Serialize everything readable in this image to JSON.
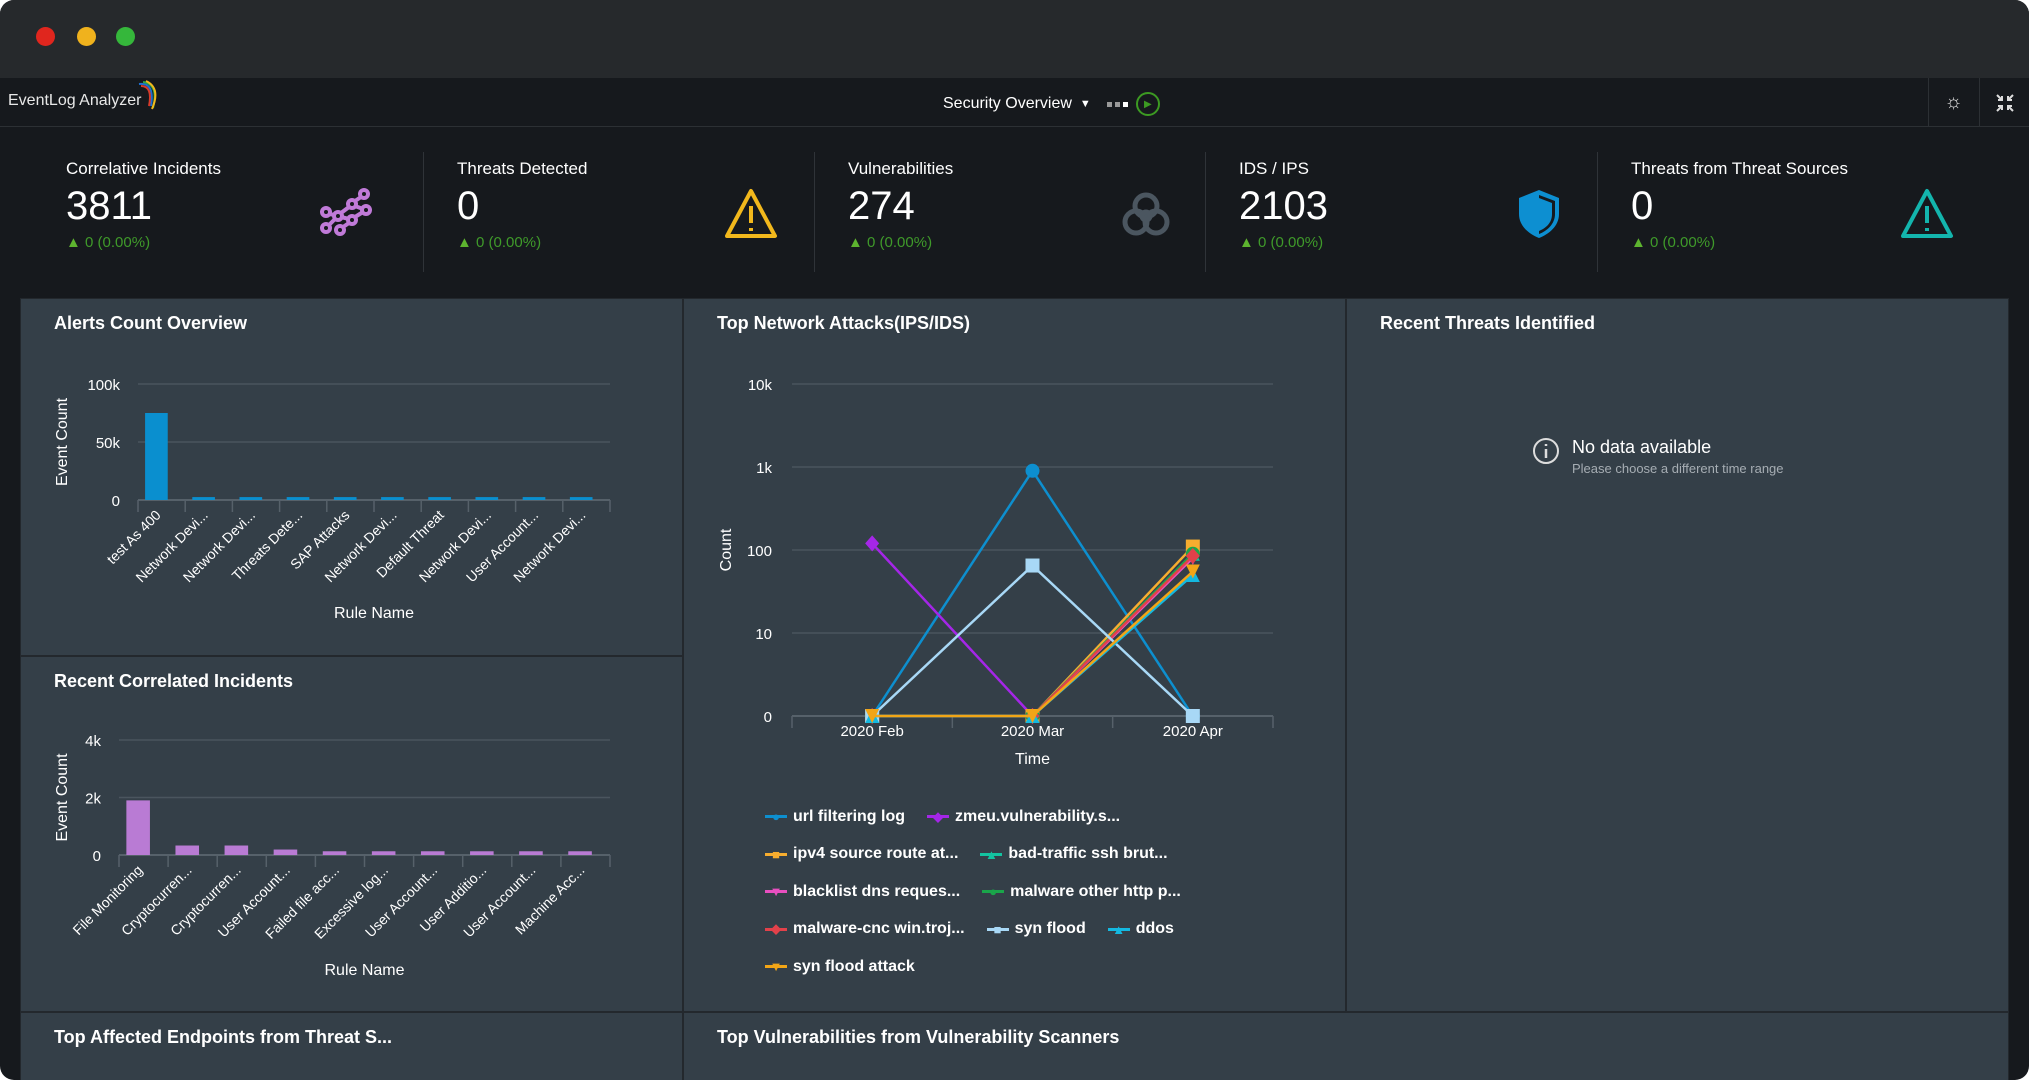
{
  "app": {
    "name": "EventLog Analyzer",
    "dashboard": "Security Overview"
  },
  "header": {
    "theme_icon": "theme-toggle-icon",
    "collapse_icon": "collapse-icon"
  },
  "kpis": [
    {
      "label": "Correlative Incidents",
      "value": "3811",
      "change": "0 (0.00%)",
      "icon": "correlation-icon",
      "color": "#c07ad8"
    },
    {
      "label": "Threats Detected",
      "value": "0",
      "change": "0 (0.00%)",
      "icon": "warning-icon",
      "color": "#f2b81c"
    },
    {
      "label": "Vulnerabilities",
      "value": "274",
      "change": "0 (0.00%)",
      "icon": "biohazard-icon",
      "color": "#4b5660"
    },
    {
      "label": "IDS / IPS",
      "value": "2103",
      "change": "0 (0.00%)",
      "icon": "shield-icon",
      "color": "#0d8fd1"
    },
    {
      "label": "Threats from Threat Sources",
      "value": "0",
      "change": "0 (0.00%)",
      "icon": "warning-outline-icon",
      "color": "#13b5ad"
    }
  ],
  "panels": {
    "alerts": "Alerts Count Overview",
    "network": "Top Network Attacks(IPS/IDS)",
    "recent_threats": "Recent Threats Identified",
    "correlated": "Recent Correlated Incidents",
    "endpoints": "Top Affected Endpoints from Threat S...",
    "vulns": "Top Vulnerabilities from Vulnerability Scanners"
  },
  "no_data": {
    "title": "No data available",
    "subtitle": "Please choose a different time range"
  },
  "chart_data": [
    {
      "type": "bar",
      "title": "Alerts Count Overview",
      "xlabel": "Rule Name",
      "ylabel": "Event Count",
      "color": "#0a8fcf",
      "categories": [
        "test As 400",
        "Network Devi...",
        "Network Devi...",
        "Threats Dete...",
        "SAP Attacks",
        "Network Devi...",
        "Default Threat",
        "Network Devi...",
        "User Account...",
        "Network Devi..."
      ],
      "values": [
        75000,
        2500,
        2500,
        2500,
        2500,
        2500,
        2500,
        2500,
        2500,
        2500
      ],
      "yticks": [
        "0",
        "50k",
        "100k"
      ],
      "ylim": [
        0,
        100000
      ],
      "grid": true
    },
    {
      "type": "bar",
      "title": "Recent Correlated Incidents",
      "xlabel": "Rule Name",
      "ylabel": "Event Count",
      "color": "#b97bd4",
      "categories": [
        "File Monitoring",
        "Cryptocurren...",
        "Cryptocurren...",
        "User Account...",
        "Failed file acc...",
        "Excessive log...",
        "User Account...",
        "User Additio...",
        "User Account...",
        "Machine Acc..."
      ],
      "values": [
        1900,
        330,
        330,
        190,
        130,
        130,
        130,
        130,
        130,
        130
      ],
      "yticks": [
        "0",
        "2k",
        "4k"
      ],
      "ylim": [
        0,
        4000
      ],
      "grid": true
    },
    {
      "type": "line",
      "title": "Top Network Attacks(IPS/IDS)",
      "xlabel": "Time",
      "ylabel": "Count",
      "yscale": "log",
      "categories": [
        "2020 Feb",
        "2020 Mar",
        "2020 Apr"
      ],
      "yticks": [
        "0",
        "10",
        "100",
        "1k",
        "10k"
      ],
      "grid": true,
      "legend": "bottom",
      "series": [
        {
          "name": "url filtering log",
          "color": "#0d8fcf",
          "marker": "circle",
          "values": [
            0,
            900,
            0
          ]
        },
        {
          "name": "zmeu.vulnerability.s...",
          "color": "#a526e8",
          "marker": "diamond",
          "values": [
            120,
            0,
            null
          ]
        },
        {
          "name": "ipv4 source route at...",
          "color": "#f7ad2f",
          "marker": "square",
          "values": [
            0,
            0,
            110
          ]
        },
        {
          "name": "bad-traffic ssh brut...",
          "color": "#13c3a0",
          "marker": "triangle",
          "values": [
            0,
            0,
            90
          ]
        },
        {
          "name": "blacklist dns reques...",
          "color": "#e84fc0",
          "marker": "triangle-down",
          "values": [
            0,
            0,
            80
          ]
        },
        {
          "name": "malware other http p...",
          "color": "#1aa54a",
          "marker": "circle",
          "values": [
            0,
            0,
            90
          ]
        },
        {
          "name": "malware-cnc win.troj...",
          "color": "#e2414a",
          "marker": "diamond",
          "values": [
            0,
            0,
            85
          ]
        },
        {
          "name": "syn flood",
          "color": "#a8d8f6",
          "marker": "square",
          "values": [
            0,
            65,
            0
          ]
        },
        {
          "name": "ddos",
          "color": "#14b8e0",
          "marker": "triangle",
          "values": [
            0,
            0,
            50
          ]
        },
        {
          "name": "syn flood attack",
          "color": "#f2a516",
          "marker": "triangle-down",
          "values": [
            0,
            0,
            55
          ]
        }
      ]
    }
  ]
}
